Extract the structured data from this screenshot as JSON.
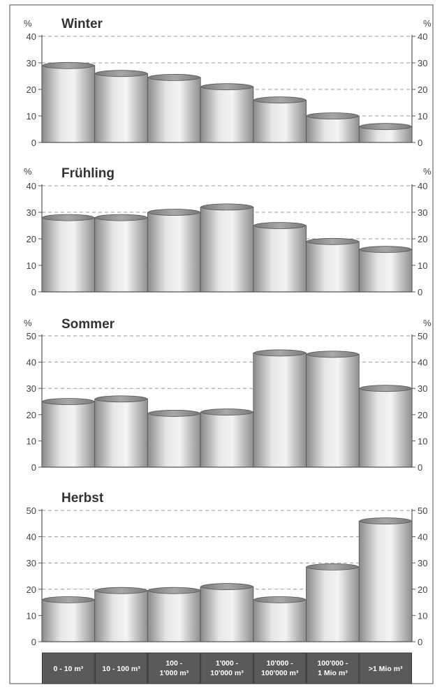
{
  "colors": {
    "frame": "#6a6a6a",
    "axis": "#555555",
    "grid": "#9a9a9a",
    "bar_side": "#8a8a8a",
    "bar_mid": "#d8d8d8",
    "bar_light": "#f2f2f2",
    "bar_top": "#8c8c8c",
    "label_bg": "#5a5a5a",
    "label_text": "#ffffff"
  },
  "chart_data": [
    {
      "type": "bar",
      "title": "Winter",
      "ylabel_left": "%",
      "ylabel_right": "%",
      "ylim": [
        0,
        40
      ],
      "yticks": [
        "0",
        "10",
        "20",
        "30",
        "40"
      ],
      "categories": [
        "0 - 10 m³",
        "10 - 100 m³",
        "100 - 1'000 m³",
        "1'000 - 10'000 m³",
        "10'000 - 100'000 m³",
        "100'000 - 1 Mio m³",
        ">1 Mio m³"
      ],
      "values": [
        29,
        26,
        24.5,
        21,
        16,
        10,
        6
      ]
    },
    {
      "type": "bar",
      "title": "Frühling",
      "ylabel_left": "%",
      "ylabel_right": "%",
      "ylim": [
        0,
        40
      ],
      "yticks": [
        "0",
        "10",
        "20",
        "30",
        "40"
      ],
      "categories": [
        "0 - 10 m³",
        "10 - 100 m³",
        "100 - 1'000 m³",
        "1'000 - 10'000 m³",
        "10'000 - 100'000 m³",
        "100'000 - 1 Mio m³",
        ">1 Mio m³"
      ],
      "values": [
        28,
        28,
        30,
        32,
        25,
        19,
        16
      ]
    },
    {
      "type": "bar",
      "title": "Sommer",
      "ylabel_left": "%",
      "ylabel_right": "%",
      "ylim": [
        0,
        50
      ],
      "yticks": [
        "0",
        "10",
        "20",
        "30",
        "40",
        "50"
      ],
      "categories": [
        "0 - 10 m³",
        "10 - 100 m³",
        "100 - 1'000 m³",
        "1'000 - 10'000 m³",
        "10'000 - 100'000 m³",
        "100'000 - 1 Mio m³",
        ">1 Mio m³"
      ],
      "values": [
        25,
        26,
        20.5,
        21,
        43.5,
        43,
        30
      ]
    },
    {
      "type": "bar",
      "title": "Herbst",
      "ylabel_left": "",
      "ylabel_right": "",
      "ylim": [
        0,
        50
      ],
      "yticks": [
        "0",
        "10",
        "20",
        "30",
        "40",
        "50"
      ],
      "categories": [
        "0 - 10 m³",
        "10 - 100 m³",
        "100 - 1'000 m³",
        "1'000 - 10'000 m³",
        "10'000 - 100'000 m³",
        "100'000 - 1 Mio m³",
        ">1 Mio m³"
      ],
      "values": [
        16,
        19.5,
        19.5,
        21,
        16,
        28.5,
        46
      ]
    }
  ],
  "category_labels": [
    {
      "line1": "0 - 10 m³",
      "line2": ""
    },
    {
      "line1": "10 - 100 m³",
      "line2": ""
    },
    {
      "line1": "100 -",
      "line2": "1'000 m³"
    },
    {
      "line1": "1'000 -",
      "line2": "10'000 m³"
    },
    {
      "line1": "10'000 -",
      "line2": "100'000 m³"
    },
    {
      "line1": "100'000 -",
      "line2": "1 Mio m³"
    },
    {
      "line1": ">1 Mio m³",
      "line2": ""
    }
  ]
}
